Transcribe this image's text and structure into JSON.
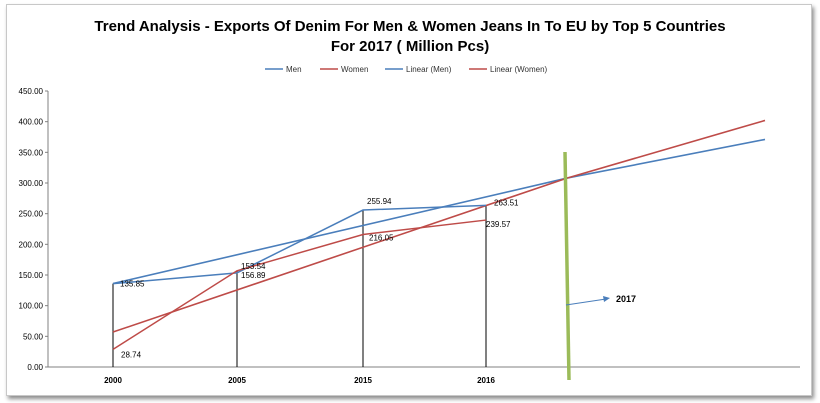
{
  "chart_data": {
    "type": "line",
    "title_line1": "Trend Analysis - Exports Of Denim For Men & Women Jeans In To EU by Top 5 Countries",
    "title_line2": "For 2017  ( Million Pcs)",
    "categories": [
      "2000",
      "2005",
      "2015",
      "2016"
    ],
    "series": [
      {
        "name": "Men",
        "values": [
          135.85,
          153.54,
          255.94,
          263.51
        ],
        "color": "#4a7ebb"
      },
      {
        "name": "Women",
        "values": [
          28.74,
          156.89,
          216.05,
          239.57
        ],
        "color": "#be4b48"
      }
    ],
    "trendlines": [
      {
        "name": "Linear (Men)",
        "of": "Men",
        "start": 136,
        "end_2017": 308,
        "end_extended": 371,
        "color": "#4a7ebb"
      },
      {
        "name": "Linear (Women)",
        "of": "Women",
        "start": 57,
        "end_2017": 308,
        "end_extended": 402,
        "color": "#be4b48"
      }
    ],
    "data_labels": {
      "Men": [
        "135.85",
        "153.54",
        "255.94",
        "263.51"
      ],
      "Women": [
        "28.74",
        "156.89",
        "216.05",
        "239.57"
      ]
    },
    "ylim": [
      0,
      450
    ],
    "yticks": [
      "0.00",
      "50.00",
      "100.00",
      "150.00",
      "200.00",
      "250.00",
      "300.00",
      "350.00",
      "400.00",
      "450.00"
    ],
    "legend": [
      "Men",
      "Women",
      "Linear (Men)",
      "Linear (Women)"
    ],
    "legend_position": "top",
    "annotation": {
      "text": "2017",
      "marker_color": "#9bbb59",
      "arrow_color": "#4a7ebb"
    },
    "grid": false
  }
}
